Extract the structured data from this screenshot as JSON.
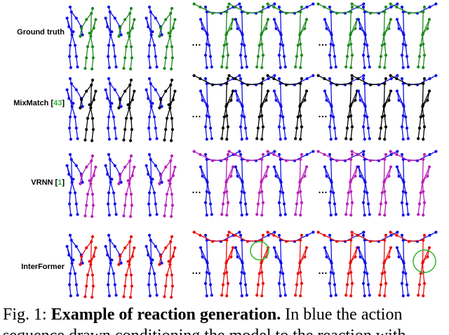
{
  "rows": [
    {
      "label": "Ground truth",
      "ref": "",
      "reaction_color": "#1f8a1f"
    },
    {
      "label": "MixMatch ",
      "ref": "43",
      "reaction_color": "#000000"
    },
    {
      "label": "VRNN ",
      "ref": "1",
      "reaction_color": "#b81fb8"
    },
    {
      "label": "InterFormer",
      "ref": "",
      "reaction_color": "#e81010"
    }
  ],
  "action_color": "#1010e8",
  "ellipsis": "…",
  "caption": {
    "prefix": "Fig. 1: ",
    "title": "Example of reaction generation.",
    "rest": " In blue the action",
    "line2": "sequence drawn conditioning the model to the reaction with"
  }
}
